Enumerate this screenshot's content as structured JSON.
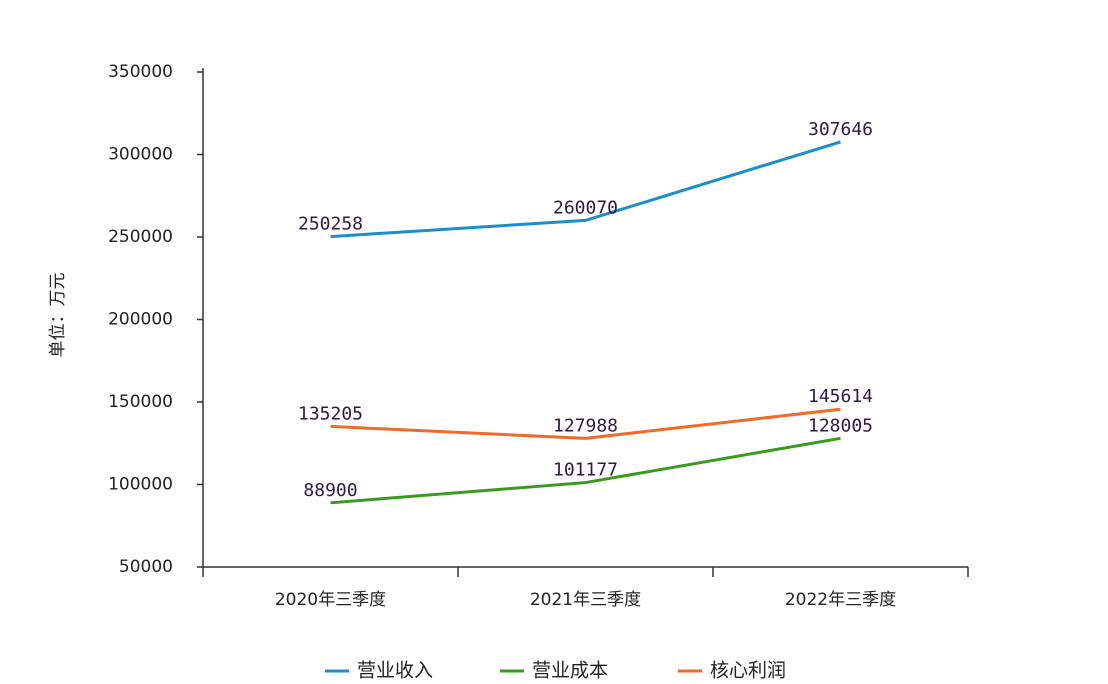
{
  "chart_data": {
    "type": "line",
    "y_label": "单位：万元",
    "categories": [
      "2020年三季度",
      "2021年三季度",
      "2022年三季度"
    ],
    "series": [
      {
        "name": "营业收入",
        "color": "#1a8fc9",
        "values": [
          250258,
          260070,
          307646
        ]
      },
      {
        "name": "营业成本",
        "color": "#3a9a1f",
        "values": [
          88900,
          101177,
          128005
        ]
      },
      {
        "name": "核心利润",
        "color": "#f06a28",
        "values": [
          135205,
          127988,
          145614
        ]
      }
    ],
    "ylim": [
      50000,
      350000
    ],
    "yticks": [
      50000,
      100000,
      150000,
      200000,
      250000,
      300000,
      350000
    ],
    "legend": "bottom"
  }
}
